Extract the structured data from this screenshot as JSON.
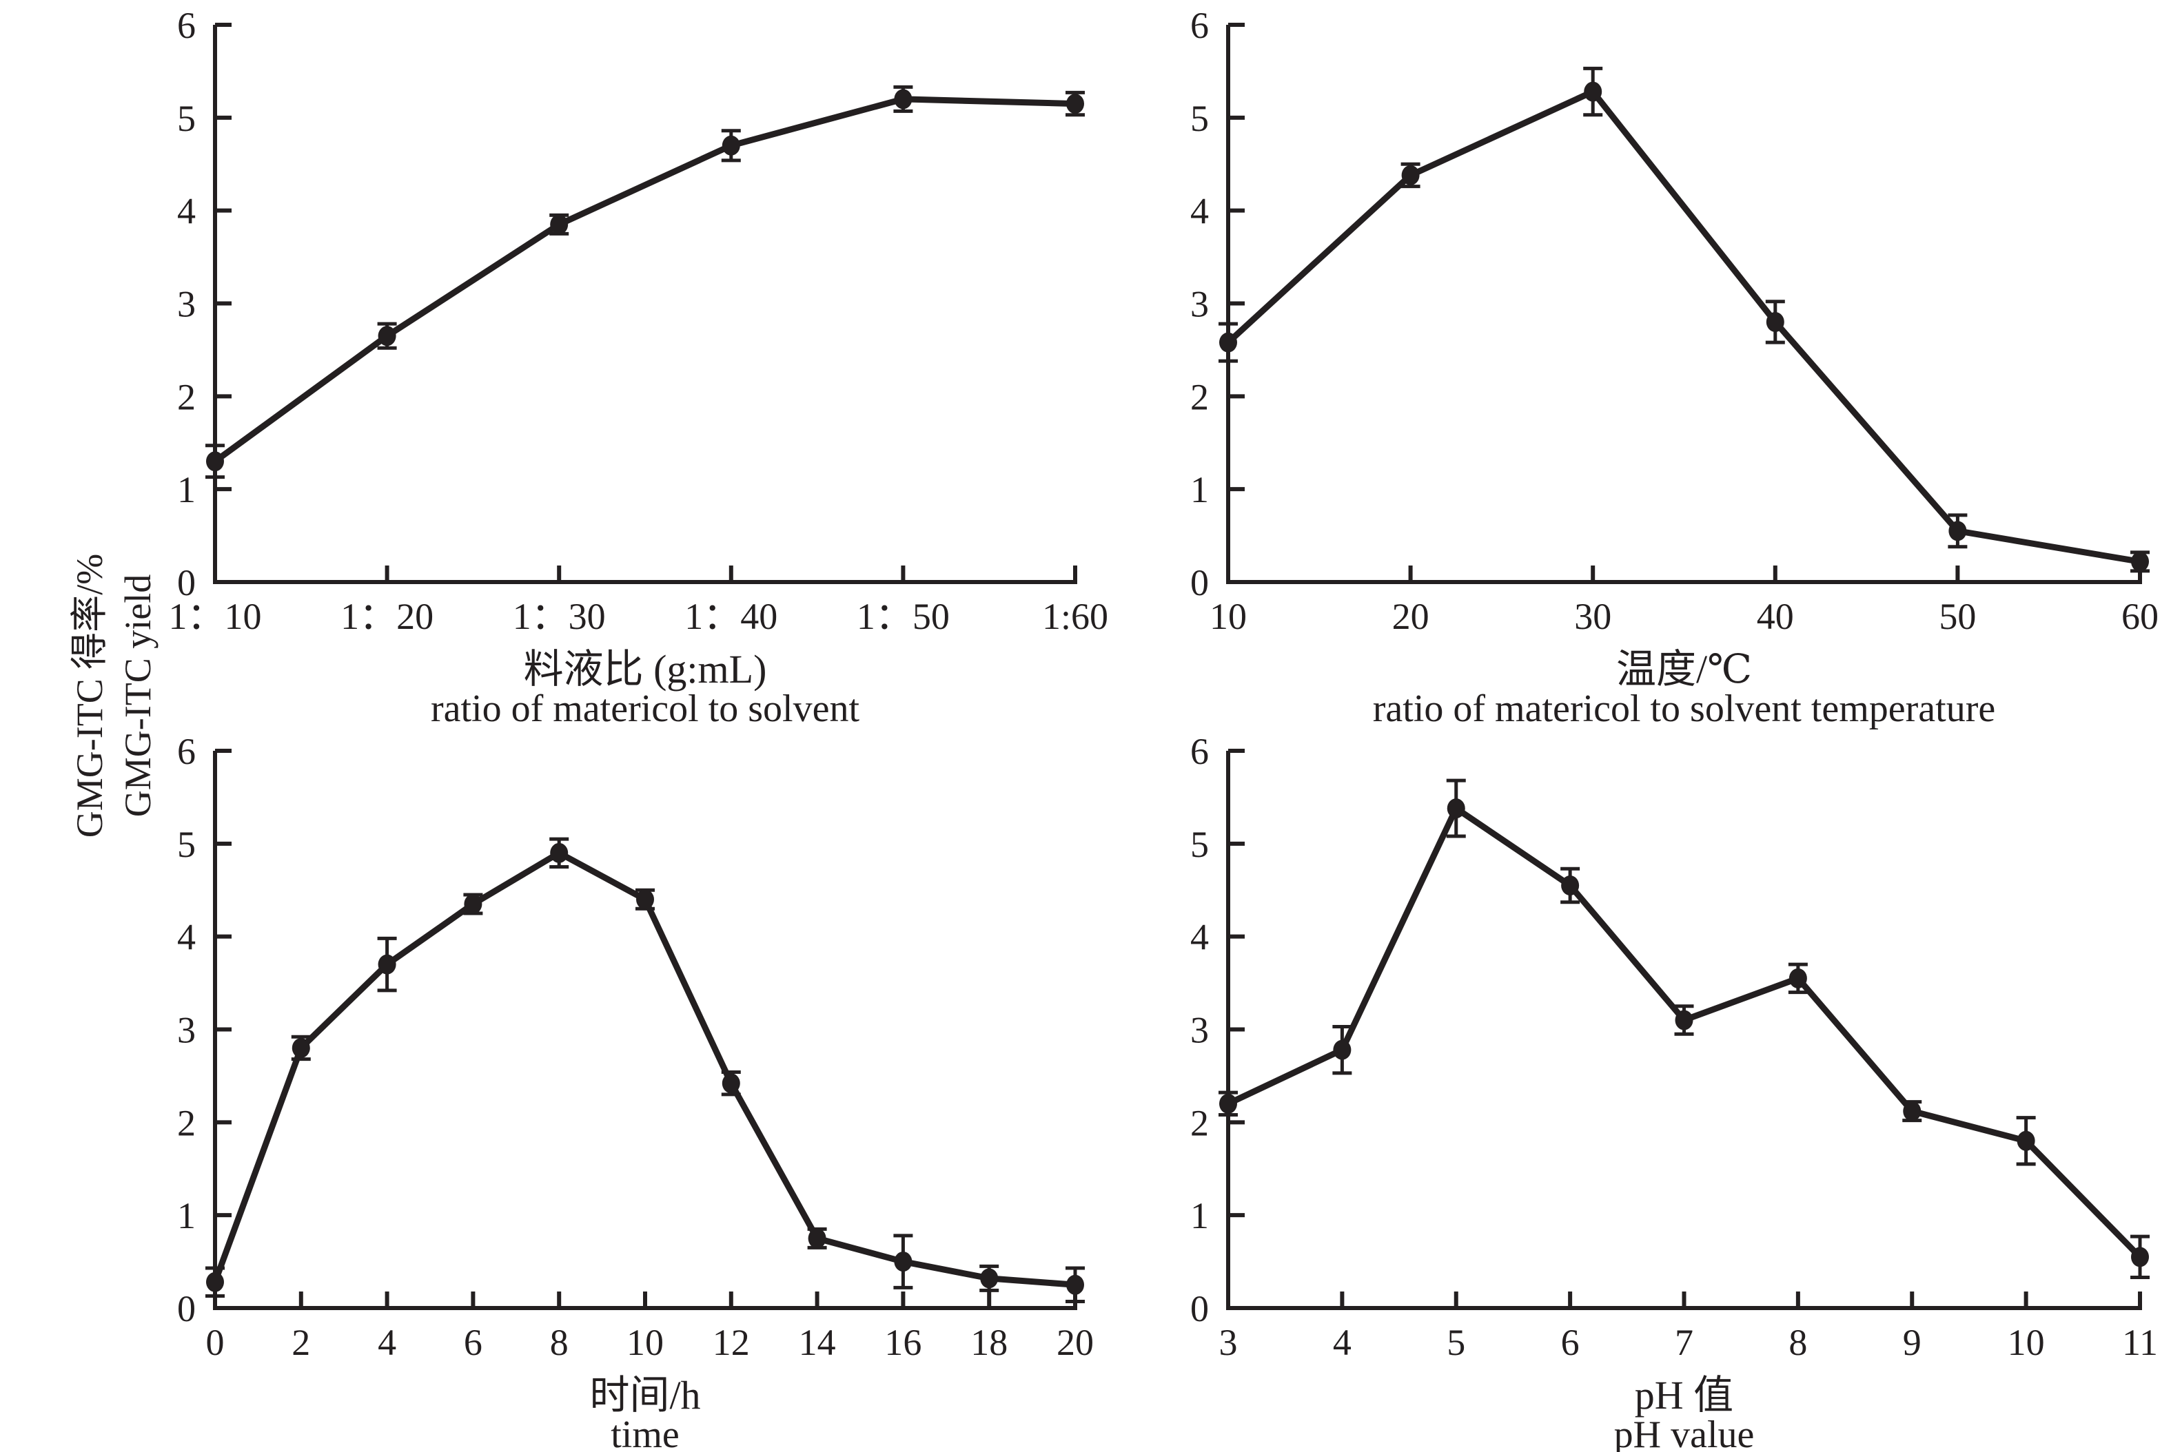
{
  "figure": {
    "ink_color": "#231f20",
    "background_color": "#ffffff",
    "ylabel": {
      "zh": "GMG-ITC 得率/%",
      "en": "GMG-ITC yield"
    }
  },
  "chart_data": [
    {
      "id": "ratio-of-material-to-solvent",
      "type": "line",
      "marker": "filled-circle",
      "error_bars": true,
      "grid": false,
      "xlabel_zh": "料液比 (g:mL)",
      "xlabel_en": "ratio of matericol to solvent",
      "x": [
        0,
        1,
        2,
        3,
        4,
        5
      ],
      "x_tick_labels": [
        "1：10",
        "1：20",
        "1：30",
        "1：40",
        "1：50",
        "1:60"
      ],
      "values": [
        1.3,
        2.65,
        3.85,
        4.7,
        5.2,
        5.15
      ],
      "errors": [
        0.17,
        0.13,
        0.1,
        0.16,
        0.13,
        0.12
      ],
      "ylim": [
        0,
        6
      ],
      "y_ticks": [
        0,
        1,
        2,
        3,
        4,
        5,
        6
      ]
    },
    {
      "id": "temperature",
      "type": "line",
      "marker": "filled-circle",
      "error_bars": true,
      "grid": false,
      "xlabel_zh": "温度/℃",
      "xlabel_en": "ratio of matericol to solvent temperature",
      "x": [
        10,
        20,
        30,
        40,
        50,
        60
      ],
      "x_tick_labels": [
        "10",
        "20",
        "30",
        "40",
        "50",
        "60"
      ],
      "values": [
        2.58,
        4.38,
        5.28,
        2.8,
        0.55,
        0.22
      ],
      "errors": [
        0.2,
        0.12,
        0.25,
        0.22,
        0.17,
        0.1
      ],
      "ylim": [
        0,
        6
      ],
      "y_ticks": [
        0,
        1,
        2,
        3,
        4,
        5,
        6
      ]
    },
    {
      "id": "time",
      "type": "line",
      "marker": "filled-circle",
      "error_bars": true,
      "grid": false,
      "xlabel_zh": "时间/h",
      "xlabel_en": "time",
      "x": [
        0,
        2,
        4,
        6,
        8,
        10,
        12,
        14,
        16,
        18,
        20
      ],
      "x_tick_labels": [
        "0",
        "2",
        "4",
        "6",
        "8",
        "10",
        "12",
        "14",
        "16",
        "18",
        "20"
      ],
      "values": [
        0.28,
        2.8,
        3.7,
        4.35,
        4.9,
        4.4,
        2.42,
        0.75,
        0.5,
        0.32,
        0.25
      ],
      "errors": [
        0.15,
        0.12,
        0.28,
        0.1,
        0.15,
        0.1,
        0.12,
        0.1,
        0.28,
        0.13,
        0.18
      ],
      "ylim": [
        0,
        6
      ],
      "y_ticks": [
        0,
        1,
        2,
        3,
        4,
        5,
        6
      ]
    },
    {
      "id": "ph",
      "type": "line",
      "marker": "filled-circle",
      "error_bars": true,
      "grid": false,
      "xlabel_zh": "pH 值",
      "xlabel_en": "pH value",
      "x": [
        3,
        4,
        5,
        6,
        7,
        8,
        9,
        10,
        11
      ],
      "x_tick_labels": [
        "3",
        "4",
        "5",
        "6",
        "7",
        "8",
        "9",
        "10",
        "11"
      ],
      "values": [
        2.2,
        2.78,
        5.38,
        4.55,
        3.1,
        3.55,
        2.12,
        1.8,
        0.55
      ],
      "errors": [
        0.12,
        0.25,
        0.3,
        0.18,
        0.15,
        0.15,
        0.1,
        0.25,
        0.22
      ],
      "ylim": [
        0,
        6
      ],
      "y_ticks": [
        0,
        1,
        2,
        3,
        4,
        5,
        6
      ]
    }
  ]
}
